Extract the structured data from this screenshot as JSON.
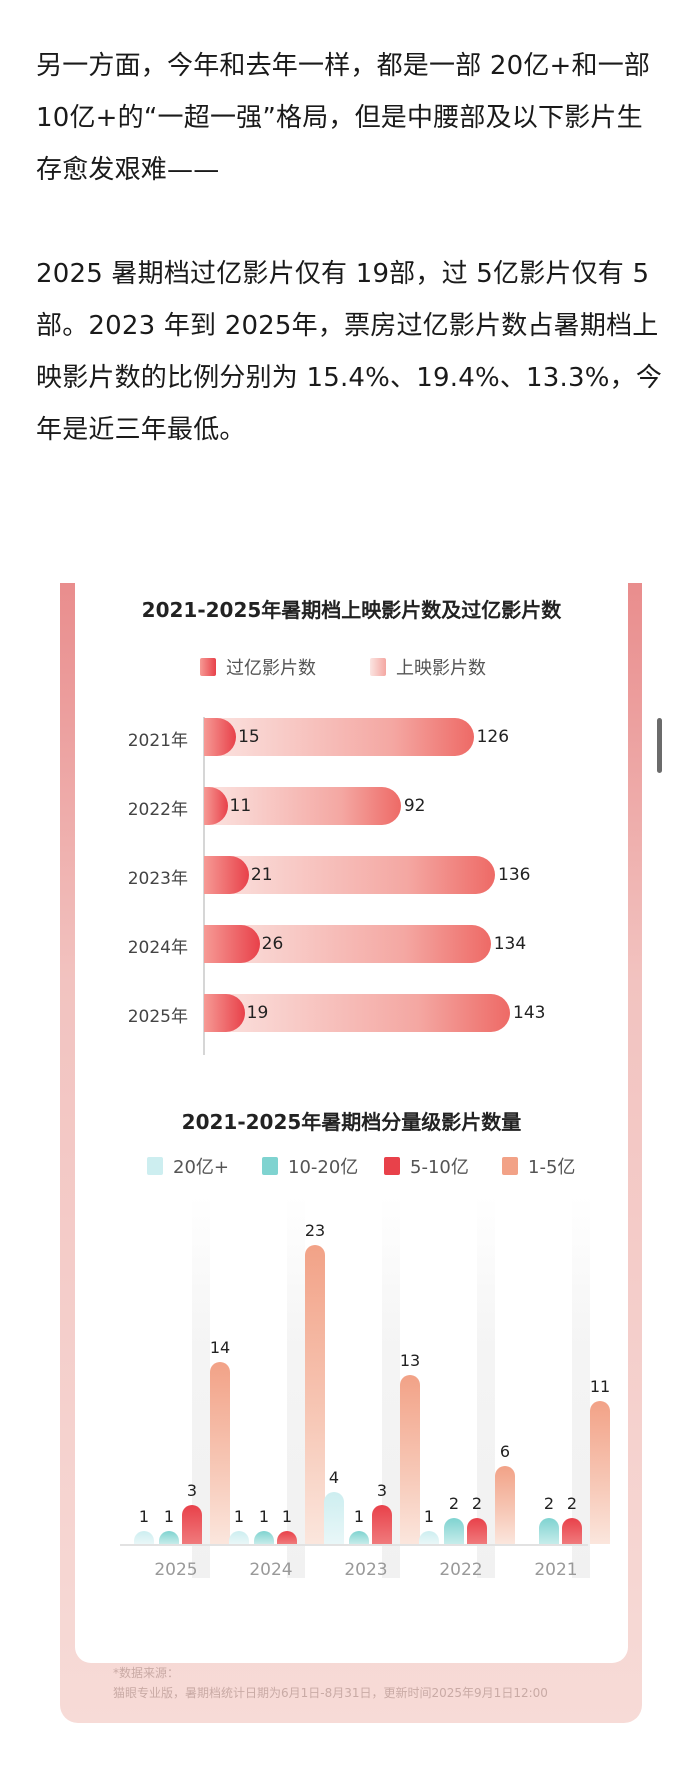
{
  "article": {
    "paragraph1": "另一方面，今年和去年一样，都是一部 20亿+和一部 10亿+的“一超一强”格局，但是中腰部及以下影片生存愈发艰难——",
    "paragraph2": "2025 暑期档过亿影片仅有 19部，过 5亿影片仅有 5部。2023 年到 2025年，票房过亿影片数占暑期档上映影片数的比例分别为 15.4%、19.4%、13.3%，今年是近三年最低。"
  },
  "chart_data": [
    {
      "type": "bar",
      "orientation": "horizontal",
      "title": "2021-2025年暑期档上映影片数及过亿影片数",
      "legend_position": "top",
      "categories": [
        "2021年",
        "2022年",
        "2023年",
        "2024年",
        "2025年"
      ],
      "series": [
        {
          "name": "过亿影片数",
          "values": [
            15,
            11,
            21,
            26,
            19
          ],
          "color": "#e8414a"
        },
        {
          "name": "上映影片数",
          "values": [
            126,
            92,
            136,
            134,
            143
          ],
          "color": "#f4a7a2"
        }
      ],
      "xlim": [
        0,
        143
      ]
    },
    {
      "type": "bar",
      "orientation": "vertical",
      "title": "2021-2025年暑期档分量级影片数量",
      "legend_position": "top",
      "categories": [
        "2025",
        "2024",
        "2023",
        "2022",
        "2021"
      ],
      "series": [
        {
          "name": "20亿+",
          "values": [
            1,
            1,
            4,
            1,
            0
          ],
          "color": "#cdeef0"
        },
        {
          "name": "10-20亿",
          "values": [
            1,
            1,
            1,
            2,
            2
          ],
          "color": "#7fd3d0"
        },
        {
          "name": "5-10亿",
          "values": [
            3,
            1,
            3,
            2,
            2
          ],
          "color": "#e8414a"
        },
        {
          "name": "1-5亿",
          "values": [
            14,
            23,
            13,
            6,
            11
          ],
          "color": "#f2a287"
        }
      ],
      "ylim": [
        0,
        23
      ],
      "grid": false
    }
  ],
  "source": {
    "line1": "*数据来源：",
    "line2": "猫眼专业版，暑期档统计日期为6月1日-8月31日，更新时间2025年9月1日12:00"
  }
}
